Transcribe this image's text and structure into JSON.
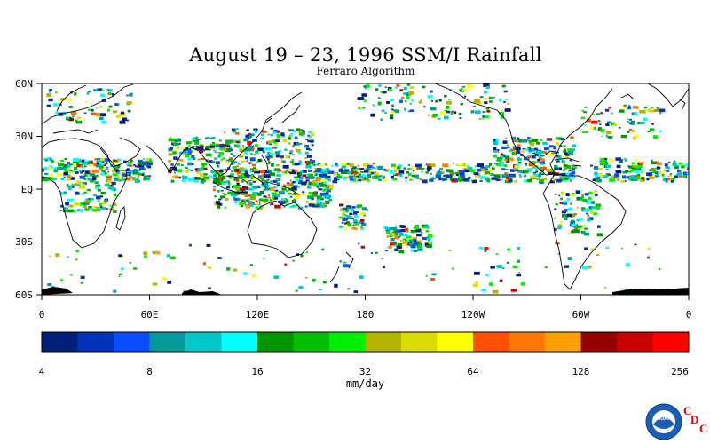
{
  "header": {
    "title": "August 19 – 23, 1996 SSM/I Rainfall",
    "subtitle": "Ferraro Algorithm"
  },
  "map": {
    "lat_labels": [
      "60N",
      "30N",
      "EQ",
      "30S",
      "60S"
    ],
    "lon_labels": [
      "0",
      "60E",
      "120E",
      "180",
      "120W",
      "60W",
      "0"
    ],
    "lat_range": [
      -60,
      60
    ],
    "lon_range": [
      0,
      360
    ]
  },
  "colorbar": {
    "colors": [
      "#001f7a",
      "#0033b8",
      "#0a4cff",
      "#009a9a",
      "#00c8c8",
      "#00ffff",
      "#009600",
      "#00c000",
      "#00f000",
      "#b4b400",
      "#dcdc00",
      "#ffff00",
      "#ff5000",
      "#ff7800",
      "#ffa000",
      "#960000",
      "#c80000",
      "#ff0000"
    ],
    "tick_labels": [
      "4",
      "8",
      "16",
      "32",
      "64",
      "128",
      "256"
    ],
    "unit": "mm/day"
  },
  "logo": {
    "emblem": "NOAA",
    "letters": [
      "C",
      "D",
      "C"
    ],
    "accent_color": "#cc0000",
    "emblem_color": "#1a5fb4"
  },
  "rain_bands": [
    {
      "lon0": 0,
      "lon1": 60,
      "lat0": 5,
      "lat1": 18,
      "n": 220
    },
    {
      "lon0": 10,
      "lon1": 40,
      "lat0": -12,
      "lat1": 5,
      "n": 90
    },
    {
      "lon0": 2,
      "lon1": 50,
      "lat0": 38,
      "lat1": 58,
      "n": 70
    },
    {
      "lon0": 70,
      "lon1": 100,
      "lat0": 5,
      "lat1": 30,
      "n": 160
    },
    {
      "lon0": 95,
      "lon1": 160,
      "lat0": -10,
      "lat1": 12,
      "n": 380
    },
    {
      "lon0": 100,
      "lon1": 150,
      "lat0": 10,
      "lat1": 35,
      "n": 220
    },
    {
      "lon0": 150,
      "lon1": 250,
      "lat0": 5,
      "lat1": 15,
      "n": 260
    },
    {
      "lon0": 165,
      "lon1": 180,
      "lat0": -22,
      "lat1": -8,
      "n": 60
    },
    {
      "lon0": 190,
      "lon1": 215,
      "lat0": -35,
      "lat1": -20,
      "n": 90
    },
    {
      "lon0": 250,
      "lon1": 295,
      "lat0": 5,
      "lat1": 30,
      "n": 260
    },
    {
      "lon0": 285,
      "lon1": 310,
      "lat0": -25,
      "lat1": 0,
      "n": 90
    },
    {
      "lon0": 305,
      "lon1": 360,
      "lat0": 5,
      "lat1": 18,
      "n": 150
    },
    {
      "lon0": 300,
      "lon1": 345,
      "lat0": 30,
      "lat1": 48,
      "n": 70
    },
    {
      "lon0": 175,
      "lon1": 260,
      "lat0": 40,
      "lat1": 60,
      "n": 120
    },
    {
      "lon0": 0,
      "lon1": 360,
      "lat0": -58,
      "lat1": -30,
      "n": 120
    }
  ]
}
